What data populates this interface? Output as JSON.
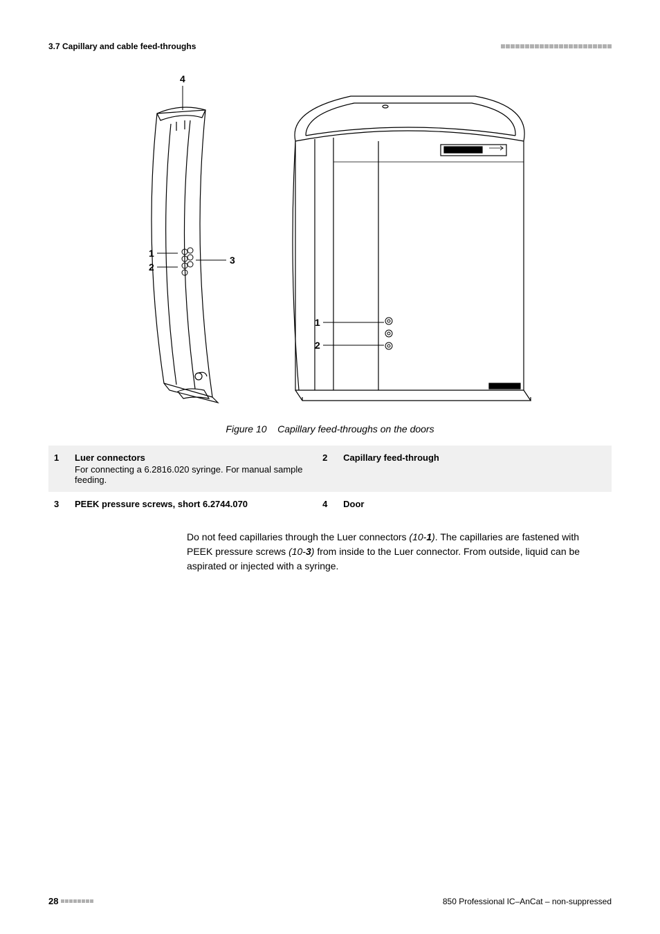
{
  "header": {
    "section": "3.7 Capillary and cable feed-throughs"
  },
  "figure": {
    "labels": {
      "left": {
        "l1": "1",
        "l2": "2",
        "l3": "3",
        "l4": "4"
      },
      "right": {
        "r1": "1",
        "r2": "2"
      }
    },
    "caption_prefix": "Figure 10",
    "caption_text": "Capillary feed-throughs on the doors"
  },
  "legend": {
    "rows": [
      {
        "num_a": "1",
        "title_a": "Luer connectors",
        "desc_a": "For connecting a 6.2816.020 syringe. For manual sample feeding.",
        "num_b": "2",
        "title_b": "Capillary feed-through",
        "desc_b": ""
      },
      {
        "num_a": "3",
        "title_a": "PEEK pressure screws, short 6.2744.070",
        "desc_a": "",
        "num_b": "4",
        "title_b": "Door",
        "desc_b": ""
      }
    ]
  },
  "body": {
    "t1": "Do not feed capillaries through the Luer connectors ",
    "ref1a": "(10-",
    "ref1b": "1",
    "ref1c": ")",
    "t2": ". The capillaries are fastened with PEEK pressure screws ",
    "ref2a": "(10-",
    "ref2b": "3",
    "ref2c": ")",
    "t3": " from inside to the Luer connector. From outside, liquid can be aspirated or injected with a syringe."
  },
  "footer": {
    "page": "28",
    "doc": "850 Professional IC–AnCat – non-suppressed"
  },
  "style": {
    "colors": {
      "square": "#b0b0b0",
      "shade": "#f0f0f0",
      "line": "#000000",
      "bg": "#ffffff"
    },
    "header_square_count": 23,
    "footer_square_count": 8
  }
}
